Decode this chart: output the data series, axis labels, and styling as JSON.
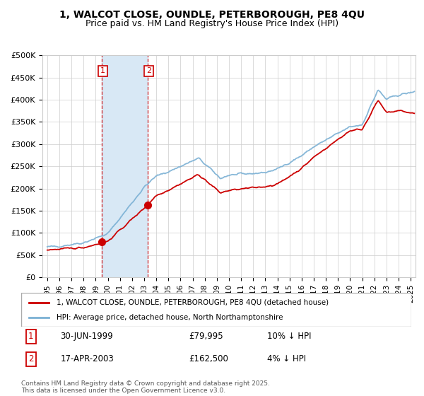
{
  "title_line1": "1, WALCOT CLOSE, OUNDLE, PETERBOROUGH, PE8 4QU",
  "title_line2": "Price paid vs. HM Land Registry's House Price Index (HPI)",
  "ylim": [
    0,
    500000
  ],
  "yticks": [
    0,
    50000,
    100000,
    150000,
    200000,
    250000,
    300000,
    350000,
    400000,
    450000,
    500000
  ],
  "ytick_labels": [
    "£0",
    "£50K",
    "£100K",
    "£150K",
    "£200K",
    "£250K",
    "£300K",
    "£350K",
    "£400K",
    "£450K",
    "£500K"
  ],
  "sale1": {
    "year": 1999.5,
    "price": 79995,
    "label": "1",
    "date": "30-JUN-1999",
    "price_str": "£79,995",
    "hpi_diff": "10% ↓ HPI"
  },
  "sale2": {
    "year": 2003.29,
    "price": 162500,
    "label": "2",
    "date": "17-APR-2003",
    "price_str": "£162,500",
    "hpi_diff": "4% ↓ HPI"
  },
  "legend_line1": "1, WALCOT CLOSE, OUNDLE, PETERBOROUGH, PE8 4QU (detached house)",
  "legend_line2": "HPI: Average price, detached house, North Northamptonshire",
  "footnote": "Contains HM Land Registry data © Crown copyright and database right 2025.\nThis data is licensed under the Open Government Licence v3.0.",
  "red_color": "#cc0000",
  "blue_color": "#7ab0d4",
  "shade_color": "#d8e8f5",
  "grid_color": "#cccccc",
  "background_color": "#ffffff",
  "xlim_left": 1994.6,
  "xlim_right": 2025.4
}
